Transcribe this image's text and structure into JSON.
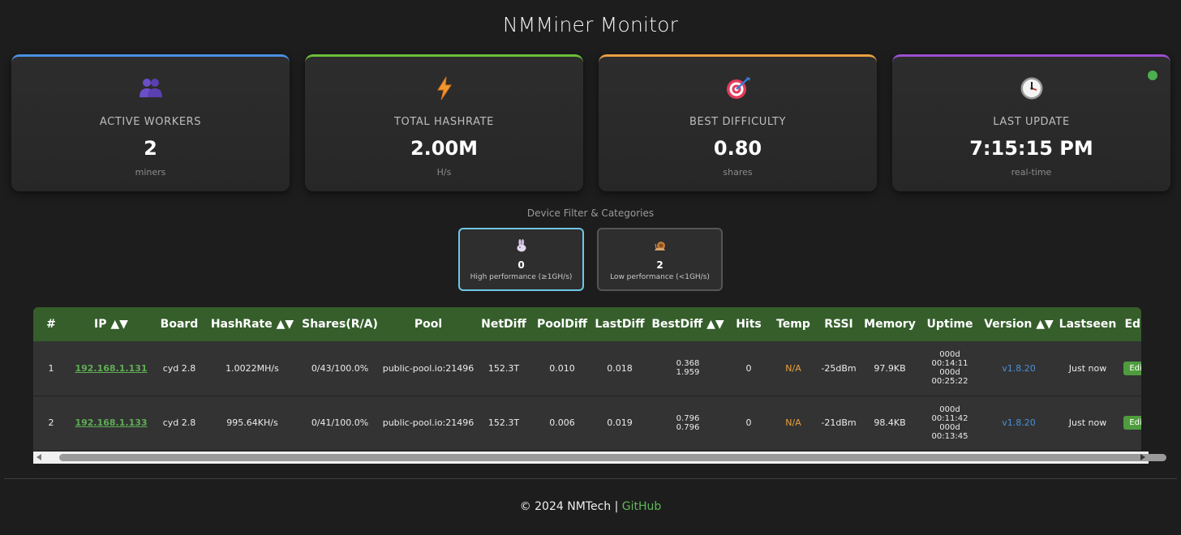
{
  "app": {
    "title": "NMMiner Monitor"
  },
  "cards": [
    {
      "label": "ACTIVE WORKERS",
      "value": "2",
      "unit": "miners",
      "icon": "workers-icon",
      "accent": "#4a90e2"
    },
    {
      "label": "TOTAL HASHRATE",
      "value": "2.00M",
      "unit": "H/s",
      "icon": "lightning-icon",
      "accent": "#6bbf3a"
    },
    {
      "label": "BEST DIFFICULTY",
      "value": "0.80",
      "unit": "shares",
      "icon": "target-icon",
      "accent": "#e8a040"
    },
    {
      "label": "LAST UPDATE",
      "value": "7:15:15 PM",
      "unit": "real-time",
      "icon": "clock-icon",
      "accent": "#9b4fd0"
    }
  ],
  "filter": {
    "title": "Device Filter & Categories",
    "items": [
      {
        "count": "0",
        "label": "High performance (≥1GH/s)",
        "icon": "rabbit-icon"
      },
      {
        "count": "2",
        "label": "Low performance (<1GH/s)",
        "icon": "snail-icon"
      }
    ]
  },
  "table": {
    "headers": [
      "#",
      "IP ▲▼",
      "Board",
      "HashRate ▲▼",
      "Shares(R/A)",
      "Pool",
      "NetDiff",
      "PoolDiff",
      "LastDiff",
      "BestDiff ▲▼",
      "Hits",
      "Temp",
      "RSSI",
      "Memory",
      "Uptime",
      "Version ▲▼",
      "Lastseen",
      "Edit"
    ],
    "rows": [
      {
        "num": "1",
        "ip": "192.168.1.131",
        "board": "cyd 2.8",
        "hashrate": "1.0022MH/s",
        "shares": "0/43/100.0%",
        "pool": "public-pool.io:21496",
        "netdiff": "152.3T",
        "pooldiff": "0.010",
        "lastdiff": "0.018",
        "bestdiff_1": "0.368",
        "bestdiff_2": "1.959",
        "hits": "0",
        "temp": "N/A",
        "rssi": "-25dBm",
        "memory": "97.9KB",
        "uptime_1": "000d",
        "uptime_2": "00:14:11",
        "uptime_3": "000d",
        "uptime_4": "00:25:22",
        "version": "v1.8.20",
        "lastseen": "Just now",
        "edit": "Edit"
      },
      {
        "num": "2",
        "ip": "192.168.1.133",
        "board": "cyd 2.8",
        "hashrate": "995.64KH/s",
        "shares": "0/41/100.0%",
        "pool": "public-pool.io:21496",
        "netdiff": "152.3T",
        "pooldiff": "0.006",
        "lastdiff": "0.019",
        "bestdiff_1": "0.796",
        "bestdiff_2": "0.796",
        "hits": "0",
        "temp": "N/A",
        "rssi": "-21dBm",
        "memory": "98.4KB",
        "uptime_1": "000d",
        "uptime_2": "00:11:42",
        "uptime_3": "000d",
        "uptime_4": "00:13:45",
        "version": "v1.8.20",
        "lastseen": "Just now",
        "edit": "Edit"
      }
    ]
  },
  "footer": {
    "copyright": "© 2024 NMTech",
    "separator": " | ",
    "link": "GitHub"
  },
  "colors": {
    "background": "#1d1d1d",
    "header": "#355e2b",
    "accent_green": "#5fb85a",
    "status_online": "#4caf50"
  }
}
